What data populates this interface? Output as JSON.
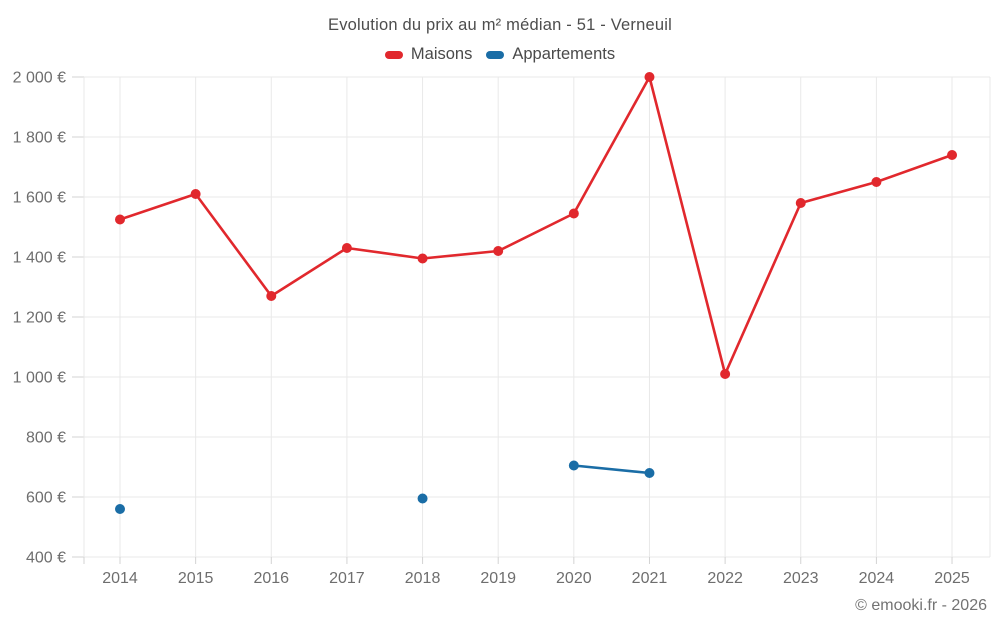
{
  "header": {
    "title": "Evolution du prix au m² médian - 51 - Verneuil"
  },
  "legend": [
    {
      "label": "Maisons",
      "color": "#e1282d"
    },
    {
      "label": "Appartements",
      "color": "#1a6da6"
    }
  ],
  "footer": {
    "copyright": "© emooki.fr - 2026"
  },
  "chart_data": {
    "type": "line",
    "title": "Evolution du prix au m² médian - 51 - Verneuil",
    "categories": [
      "2014",
      "2015",
      "2016",
      "2017",
      "2018",
      "2019",
      "2020",
      "2021",
      "2022",
      "2023",
      "2024",
      "2025"
    ],
    "series": [
      {
        "name": "Maisons",
        "color": "#e1282d",
        "values": [
          1525,
          1610,
          1270,
          1430,
          1395,
          1420,
          1545,
          2000,
          1010,
          1580,
          1650,
          1740
        ]
      },
      {
        "name": "Appartements",
        "color": "#1a6da6",
        "values": [
          560,
          null,
          null,
          null,
          595,
          null,
          705,
          680,
          null,
          null,
          null,
          null
        ]
      }
    ],
    "xlabel": "",
    "ylabel": "",
    "ylim": [
      400,
      2000
    ],
    "y_ticks": [
      {
        "value": 400,
        "label": "400 €"
      },
      {
        "value": 600,
        "label": "600 €"
      },
      {
        "value": 800,
        "label": "800 €"
      },
      {
        "value": 1000,
        "label": "1 000 €"
      },
      {
        "value": 1200,
        "label": "1 200 €"
      },
      {
        "value": 1400,
        "label": "1 400 €"
      },
      {
        "value": 1600,
        "label": "1 600 €"
      },
      {
        "value": 1800,
        "label": "1 800 €"
      },
      {
        "value": 2000,
        "label": "2 000 €"
      }
    ],
    "grid": true,
    "legend_position": "top",
    "currency": "€"
  }
}
